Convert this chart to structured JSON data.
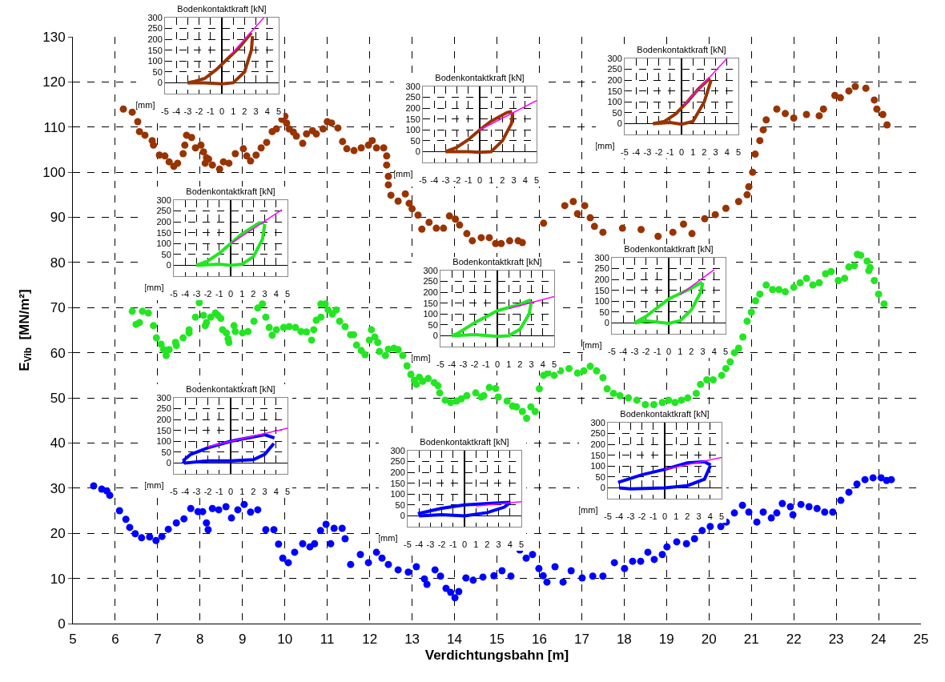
{
  "chart_data": [
    {
      "type": "scatter",
      "xlabel": "Verdichtungsbahn [m]",
      "ylabel": "E$_{Vib}$  [MN/m²]",
      "xlim": [
        5,
        25
      ],
      "xticks": [
        5,
        6,
        7,
        8,
        9,
        10,
        11,
        12,
        13,
        14,
        15,
        16,
        17,
        18,
        19,
        20,
        21,
        22,
        23,
        24,
        25
      ],
      "ylim": [
        0,
        130
      ],
      "yticks": [
        0,
        10,
        20,
        30,
        40,
        50,
        60,
        70,
        80,
        90,
        100,
        110,
        120,
        130
      ],
      "grid": true,
      "marker": "circle",
      "series": [
        {
          "color": "#993300",
          "x": [
            6.19,
            6.4,
            6.53,
            6.57,
            6.7,
            6.87,
            6.9,
            7.04,
            7.17,
            7.27,
            7.38,
            7.47,
            7.6,
            7.64,
            7.68,
            7.8,
            7.89,
            8.02,
            8.08,
            8.12,
            8.15,
            8.2,
            8.29,
            8.46,
            8.55,
            8.68,
            8.83,
            9.02,
            9.1,
            9.19,
            9.32,
            9.44,
            9.57,
            9.7,
            9.8,
            9.93,
            10.0,
            10.04,
            10.1,
            10.2,
            10.27,
            10.42,
            10.51,
            10.65,
            10.74,
            10.9,
            11.0,
            11.1,
            11.25,
            11.36,
            11.46,
            11.63,
            11.8,
            11.97,
            12.06,
            12.16,
            12.33,
            12.4,
            12.4,
            12.44,
            12.44,
            12.5,
            12.67,
            12.84,
            12.93,
            13.0,
            13.14,
            13.23,
            13.4,
            13.57,
            13.74,
            13.88,
            14.02,
            14.12,
            14.29,
            14.42,
            14.63,
            14.82,
            14.97,
            15.1,
            15.3,
            15.5,
            15.6,
            16.1,
            16.6,
            16.8,
            16.9,
            17.07,
            17.2,
            17.3,
            17.5,
            17.96,
            18.4,
            18.8,
            19.15,
            19.4,
            19.6,
            19.9,
            20.15,
            20.4,
            20.7,
            20.9,
            20.94,
            21.03,
            21.09,
            21.2,
            21.28,
            21.35,
            21.6,
            21.8,
            22.0,
            22.3,
            22.6,
            22.7,
            22.97,
            23.1,
            23.3,
            23.45,
            23.7,
            23.9,
            23.96,
            24.1,
            24.2
          ],
          "values": [
            114,
            113.3,
            111.2,
            109,
            108.2,
            107,
            106,
            103.8,
            103.6,
            102.3,
            101.3,
            102,
            104.1,
            106,
            108.2,
            107.7,
            105.4,
            106,
            104.5,
            102,
            103.2,
            102.9,
            101.6,
            100.7,
            102.3,
            102,
            104.1,
            105.2,
            103.6,
            102.5,
            103.8,
            105.4,
            106.6,
            109,
            109.6,
            111.7,
            112.4,
            110.9,
            109.6,
            108.9,
            108,
            106.4,
            108.5,
            109.2,
            108.5,
            109.6,
            111.2,
            110.9,
            109.8,
            106.8,
            105.2,
            104.8,
            105.4,
            106,
            107,
            105.4,
            105.4,
            103.6,
            101.6,
            99.1,
            97.2,
            94.9,
            93.6,
            95.2,
            93.1,
            91.9,
            90.5,
            87.4,
            88.9,
            87.6,
            87.6,
            90.3,
            89.6,
            88.3,
            86.4,
            84.8,
            85.5,
            85.5,
            84.2,
            84.2,
            84.8,
            84.8,
            84.4,
            88.7,
            92.6,
            93.5,
            90.8,
            92.6,
            89.9,
            88,
            86.7,
            87.6,
            87.3,
            85.8,
            86.7,
            88.5,
            86.4,
            89.7,
            90.6,
            92,
            93.5,
            95,
            96.8,
            100,
            104,
            107,
            109.4,
            111.6,
            114,
            113,
            112,
            112.8,
            112.5,
            114,
            117,
            116.5,
            118,
            119,
            118.6,
            116,
            114,
            112.8,
            110.5
          ]
        },
        {
          "color": "#22e622",
          "x": [
            6.4,
            6.49,
            6.57,
            6.64,
            6.78,
            6.9,
            6.97,
            7.08,
            7.14,
            7.2,
            7.27,
            7.42,
            7.44,
            7.6,
            7.74,
            7.74,
            7.89,
            7.98,
            8.08,
            8.12,
            8.15,
            8.25,
            8.36,
            8.42,
            8.49,
            8.53,
            8.62,
            8.66,
            8.68,
            8.8,
            8.83,
            9.0,
            9.13,
            9.27,
            9.36,
            9.47,
            9.55,
            9.63,
            9.7,
            9.8,
            9.97,
            10.1,
            10.25,
            10.38,
            10.51,
            10.63,
            10.68,
            10.74,
            10.85,
            10.85,
            10.95,
            11.02,
            11.12,
            11.21,
            11.29,
            11.42,
            11.55,
            11.62,
            11.69,
            11.8,
            11.89,
            11.99,
            12.04,
            12.12,
            12.19,
            12.23,
            12.37,
            12.44,
            12.57,
            12.67,
            12.78,
            12.88,
            12.97,
            13.05,
            13.1,
            13.17,
            13.25,
            13.38,
            13.52,
            13.61,
            13.65,
            13.78,
            13.91,
            14.05,
            14.16,
            14.29,
            14.5,
            14.63,
            14.69,
            14.82,
            14.97,
            15.03,
            15.24,
            15.37,
            15.46,
            15.6,
            15.7,
            15.8,
            15.9,
            16.0,
            16.1,
            16.2,
            16.35,
            16.5,
            16.7,
            16.9,
            17.05,
            17.2,
            17.35,
            17.5,
            17.6,
            17.75,
            17.9,
            18.1,
            18.3,
            18.5,
            18.7,
            18.9,
            19.05,
            19.2,
            19.35,
            19.5,
            19.7,
            19.8,
            19.95,
            20.1,
            20.3,
            20.4,
            20.5,
            20.6,
            20.7,
            20.8,
            20.9,
            21.0,
            21.1,
            21.2,
            21.35,
            21.5,
            21.65,
            21.8,
            22.0,
            22.15,
            22.3,
            22.45,
            22.6,
            22.75,
            22.88,
            23.05,
            23.2,
            23.3,
            23.43,
            23.5,
            23.58,
            23.73,
            23.77,
            23.8,
            23.9,
            24.0,
            24.13
          ],
          "values": [
            69.2,
            66.3,
            66.7,
            69.2,
            68.8,
            66,
            63.3,
            61.9,
            60.7,
            59.4,
            60.7,
            62.3,
            61.6,
            63.3,
            64.4,
            65.1,
            67.9,
            71.1,
            68.3,
            66,
            66.7,
            67.9,
            68.8,
            68.3,
            67.6,
            65.1,
            64.4,
            63.1,
            62.3,
            66,
            64.7,
            64.4,
            64.7,
            67,
            69.9,
            70.8,
            67.9,
            65.6,
            63.9,
            65.1,
            65.6,
            65.8,
            65.6,
            64.7,
            64.6,
            62.8,
            65.1,
            67.2,
            67.9,
            70.8,
            70.8,
            69.5,
            68.6,
            69.5,
            67,
            65.8,
            64,
            64,
            61.7,
            60.5,
            59.6,
            62.8,
            65.1,
            63.5,
            62.3,
            60.3,
            59.4,
            60.8,
            61,
            60.7,
            59.4,
            57.1,
            55.2,
            53.9,
            53,
            54.6,
            53.7,
            54.3,
            53.4,
            52.7,
            51.1,
            49.5,
            49,
            49.3,
            49.8,
            50.5,
            51.1,
            50.2,
            50.5,
            52.3,
            52.1,
            50.2,
            49.3,
            48.2,
            48,
            47,
            45.5,
            48,
            47,
            52,
            55,
            55.5,
            55,
            56,
            56.5,
            55.5,
            56,
            57,
            56,
            54.5,
            52,
            51,
            50.5,
            50,
            49.5,
            48.5,
            48.5,
            49,
            49.5,
            49,
            49.5,
            50,
            51,
            53,
            54,
            54,
            55,
            56.5,
            58,
            60,
            61,
            63.5,
            67,
            69,
            71.5,
            73,
            75,
            74,
            74,
            73.5,
            74.5,
            75.5,
            76.5,
            75,
            75.5,
            77.5,
            78,
            76,
            76.5,
            79,
            79.3,
            81.8,
            81.6,
            80.3,
            78.2,
            78.9,
            76,
            73,
            70.8
          ]
        },
        {
          "color": "#0000ff",
          "x": [
            5.49,
            5.68,
            5.8,
            5.87,
            6.1,
            6.25,
            6.34,
            6.47,
            6.62,
            6.81,
            6.96,
            7.1,
            7.25,
            7.44,
            7.62,
            7.78,
            7.95,
            8.06,
            8.15,
            8.19,
            8.29,
            8.44,
            8.61,
            8.74,
            8.89,
            9.04,
            9.19,
            9.36,
            9.55,
            9.74,
            9.85,
            9.95,
            10.08,
            10.23,
            10.42,
            10.59,
            10.7,
            10.84,
            10.97,
            11.08,
            11.16,
            11.35,
            11.42,
            11.55,
            11.78,
            11.97,
            12.16,
            12.29,
            12.44,
            12.67,
            12.91,
            13.1,
            13.29,
            13.35,
            13.54,
            13.67,
            13.8,
            13.91,
            14.01,
            14.1,
            14.27,
            14.44,
            14.67,
            14.93,
            15.12,
            15.33,
            15.54,
            15.69,
            15.84,
            15.99,
            16.09,
            16.18,
            16.37,
            16.56,
            16.75,
            17.01,
            17.26,
            17.5,
            17.77,
            18.01,
            18.2,
            18.39,
            18.56,
            18.71,
            18.9,
            19.01,
            19.24,
            19.47,
            19.66,
            19.84,
            20.03,
            20.28,
            20.41,
            20.6,
            20.79,
            20.94,
            21.13,
            21.28,
            21.47,
            21.6,
            21.73,
            21.92,
            21.98,
            22.17,
            22.36,
            22.55,
            22.73,
            22.92,
            23.11,
            23.3,
            23.49,
            23.68,
            23.87,
            24.06,
            24.19,
            24.3
          ],
          "values": [
            30.5,
            29.8,
            29.4,
            28.4,
            25,
            23.1,
            21.3,
            19.9,
            19,
            19.2,
            18.4,
            19.3,
            20.9,
            22.3,
            23.2,
            25.5,
            24.8,
            24.8,
            22.3,
            20.8,
            25.5,
            25.2,
            25.9,
            23.4,
            25.2,
            26.4,
            24.7,
            25.2,
            20.8,
            20.8,
            17.6,
            14.5,
            13.5,
            15.8,
            17.7,
            17,
            17.7,
            20.6,
            22,
            17.7,
            21.1,
            21.1,
            18.8,
            13.1,
            15.3,
            13.5,
            15.8,
            14.5,
            13.1,
            11.9,
            11.4,
            12.6,
            9.9,
            8.7,
            11.9,
            10.5,
            7.8,
            6.9,
            5.7,
            7.1,
            10.1,
            9.6,
            10.3,
            10.6,
            11.7,
            10.5,
            16.3,
            14.5,
            15.3,
            12.2,
            10.6,
            9.2,
            12.6,
            9.2,
            11.7,
            10.1,
            10.5,
            10.5,
            13.5,
            12.2,
            13.8,
            13.8,
            15.8,
            14.2,
            15.3,
            17,
            18.1,
            17.7,
            18.8,
            20.6,
            21.5,
            21.5,
            22.5,
            24.5,
            26.2,
            24.7,
            22.5,
            24.7,
            23.4,
            24.5,
            26.6,
            25.9,
            24.1,
            26.4,
            25.9,
            25.5,
            24.7,
            24.7,
            27.3,
            29.1,
            30.9,
            31.9,
            32.3,
            32.3,
            31.7,
            31.9
          ]
        }
      ]
    },
    {
      "type": "line",
      "title": "Bodenkontaktkraft [kN]",
      "xlabel": "[mm]",
      "xlim": [
        -5,
        5
      ],
      "xticks": [
        -5,
        -4,
        -3,
        -2,
        -1,
        0,
        1,
        2,
        3,
        4,
        5
      ],
      "ylim": [
        -50,
        300
      ],
      "yticks": [
        0,
        50,
        100,
        150,
        200,
        250,
        300
      ],
      "grid": true,
      "series": [
        {
          "color": "#993300",
          "x": [
            -3,
            -1.5,
            0,
            1,
            2,
            2.6,
            2.7
          ],
          "values": [
            0,
            0,
            -5,
            0,
            50,
            150,
            215
          ]
        },
        {
          "color": "#993300",
          "x": [
            -3,
            -2.5,
            -1.5,
            -0.5,
            0.5,
            1.5,
            2.6
          ],
          "values": [
            0,
            5,
            20,
            60,
            110,
            160,
            230
          ]
        },
        {
          "color": "#ff00ff",
          "x": [
            0.8,
            3.7
          ],
          "values": [
            130,
            300
          ]
        }
      ]
    },
    {
      "type": "line",
      "title": "Bodenkontaktkraft [kN]",
      "xlabel": "[mm]",
      "xlim": [
        -5,
        5
      ],
      "xticks": [
        -5,
        -4,
        -3,
        -2,
        -1,
        0,
        1,
        2,
        3,
        4,
        5
      ],
      "ylim": [
        -50,
        300
      ],
      "yticks": [
        0,
        50,
        100,
        150,
        200,
        250,
        300
      ],
      "grid": true,
      "series": [
        {
          "color": "#993300",
          "x": [
            -3,
            -1,
            0,
            1,
            2,
            2.8,
            2.9
          ],
          "values": [
            0,
            0,
            -3,
            0,
            50,
            130,
            180
          ]
        },
        {
          "color": "#993300",
          "x": [
            -3,
            -2,
            -1,
            0,
            1,
            2.4,
            2.85
          ],
          "values": [
            0,
            20,
            55,
            100,
            140,
            180,
            185
          ]
        },
        {
          "color": "#ff00ff",
          "x": [
            0,
            5
          ],
          "values": [
            100,
            235
          ]
        }
      ]
    },
    {
      "type": "line",
      "title": "Bodenkontaktkraft [kN]",
      "xlabel": "[mm]",
      "xlim": [
        -5,
        5
      ],
      "xticks": [
        -5,
        -4,
        -3,
        -2,
        -1,
        0,
        1,
        2,
        3,
        4,
        5
      ],
      "ylim": [
        -50,
        300
      ],
      "yticks": [
        0,
        50,
        100,
        150,
        200,
        250,
        300
      ],
      "grid": true,
      "series": [
        {
          "color": "#993300",
          "x": [
            -2.5,
            -1,
            0,
            1,
            2,
            2.6
          ],
          "values": [
            0,
            5,
            -3,
            10,
            100,
            200
          ]
        },
        {
          "color": "#993300",
          "x": [
            -2.5,
            -1.5,
            -0.5,
            0.5,
            1.5,
            2.5
          ],
          "values": [
            0,
            10,
            45,
            100,
            160,
            210
          ]
        },
        {
          "color": "#ff00ff",
          "x": [
            0.2,
            4
          ],
          "values": [
            85,
            300
          ]
        }
      ]
    },
    {
      "type": "line",
      "title": "Bodenkontaktkraft [kN]",
      "xlabel": "[mm]",
      "xlim": [
        -5,
        5
      ],
      "xticks": [
        -5,
        -4,
        -3,
        -2,
        -1,
        0,
        1,
        2,
        3,
        4,
        5
      ],
      "ylim": [
        -50,
        300
      ],
      "yticks": [
        0,
        50,
        100,
        150,
        200,
        250,
        300
      ],
      "grid": true,
      "series": [
        {
          "color": "#22e622",
          "x": [
            -3,
            -1,
            0,
            1,
            2,
            2.8,
            3
          ],
          "values": [
            0,
            5,
            0,
            5,
            40,
            120,
            190
          ]
        },
        {
          "color": "#22e622",
          "x": [
            -3,
            -2,
            -1,
            0,
            1,
            2.5,
            2.95
          ],
          "values": [
            0,
            20,
            55,
            100,
            145,
            195,
            195
          ]
        },
        {
          "color": "#ff00ff",
          "x": [
            0,
            4.5
          ],
          "values": [
            100,
            255
          ]
        }
      ]
    },
    {
      "type": "line",
      "title": "Bodenkontaktkraft [kN]",
      "xlabel": "[mm]",
      "xlim": [
        -5,
        5
      ],
      "xticks": [
        -5,
        -4,
        -3,
        -2,
        -1,
        0,
        1,
        2,
        3,
        4,
        5
      ],
      "ylim": [
        -50,
        300
      ],
      "yticks": [
        0,
        50,
        100,
        150,
        200,
        250,
        300
      ],
      "grid": true,
      "series": [
        {
          "color": "#22e622",
          "x": [
            -4,
            -2,
            0,
            1,
            2,
            2.8,
            3
          ],
          "values": [
            0,
            5,
            -3,
            0,
            30,
            100,
            160
          ]
        },
        {
          "color": "#22e622",
          "x": [
            -4,
            -3.5,
            -2,
            0,
            2,
            2.95
          ],
          "values": [
            0,
            10,
            60,
            115,
            145,
            165
          ]
        },
        {
          "color": "#ff00ff",
          "x": [
            1,
            5
          ],
          "values": [
            125,
            180
          ]
        }
      ]
    },
    {
      "type": "line",
      "title": "Bodenkontaktkraft [kN]",
      "xlabel": "[mm]",
      "xlim": [
        -5,
        5
      ],
      "xticks": [
        -5,
        -4,
        -3,
        -2,
        -1,
        0,
        1,
        2,
        3,
        4,
        5
      ],
      "ylim": [
        -50,
        300
      ],
      "yticks": [
        0,
        50,
        100,
        150,
        200,
        250,
        300
      ],
      "grid": true,
      "series": [
        {
          "color": "#22e622",
          "x": [
            -3,
            -2,
            0,
            1,
            2,
            2.8,
            3
          ],
          "values": [
            0,
            10,
            -2,
            10,
            60,
            140,
            185
          ]
        },
        {
          "color": "#22e622",
          "x": [
            -3,
            -2,
            -1,
            0,
            2,
            2.95
          ],
          "values": [
            0,
            30,
            70,
            110,
            160,
            188
          ]
        },
        {
          "color": "#ff00ff",
          "x": [
            1,
            4
          ],
          "values": [
            130,
            245
          ]
        }
      ]
    },
    {
      "type": "line",
      "title": "Bodenkontaktkraft [kN]",
      "xlabel": "[mm]",
      "xlim": [
        -5,
        5
      ],
      "xticks": [
        -5,
        -4,
        -3,
        -2,
        -1,
        0,
        1,
        2,
        3,
        4,
        5
      ],
      "ylim": [
        -50,
        300
      ],
      "yticks": [
        0,
        50,
        100,
        150,
        200,
        250,
        300
      ],
      "grid": true,
      "series": [
        {
          "color": "#0000ff",
          "x": [
            -4.2,
            -4,
            -2,
            0,
            2,
            3,
            3.8
          ],
          "values": [
            10,
            0,
            10,
            10,
            15,
            40,
            90
          ]
        },
        {
          "color": "#0000ff",
          "x": [
            -4.2,
            -3.5,
            -2,
            0,
            3,
            3.85
          ],
          "values": [
            10,
            40,
            70,
            100,
            130,
            115
          ]
        },
        {
          "color": "#ff00ff",
          "x": [
            -2,
            5
          ],
          "values": [
            75,
            160
          ]
        }
      ]
    },
    {
      "type": "line",
      "title": "Bodenkontaktkraft [kN]",
      "xlabel": "[mm]",
      "xlim": [
        -5,
        5
      ],
      "xticks": [
        -5,
        -4,
        -3,
        -2,
        -1,
        0,
        1,
        2,
        3,
        4,
        5
      ],
      "ylim": [
        -50,
        300
      ],
      "yticks": [
        0,
        50,
        100,
        150,
        200,
        250,
        300
      ],
      "grid": true,
      "series": [
        {
          "color": "#0000ff",
          "x": [
            -4,
            -2,
            0,
            2,
            3.5,
            4
          ],
          "values": [
            0,
            5,
            0,
            15,
            40,
            60
          ]
        },
        {
          "color": "#0000ff",
          "x": [
            -4.1,
            -2,
            0,
            3,
            4.05
          ],
          "values": [
            10,
            35,
            50,
            60,
            62
          ]
        },
        {
          "color": "#ff00ff",
          "x": [
            1,
            5
          ],
          "values": [
            45,
            65
          ]
        }
      ]
    },
    {
      "type": "line",
      "title": "Bodenkontaktkraft [kN]",
      "xlabel": "[mm]",
      "xlim": [
        -5,
        5
      ],
      "xticks": [
        -5,
        -4,
        -3,
        -2,
        -1,
        0,
        1,
        2,
        3,
        4,
        5
      ],
      "ylim": [
        -50,
        300
      ],
      "yticks": [
        0,
        50,
        100,
        150,
        200,
        250,
        300
      ],
      "grid": true,
      "series": [
        {
          "color": "#0000ff",
          "x": [
            -4,
            -3,
            0,
            2,
            3.5,
            4
          ],
          "values": [
            0,
            -5,
            0,
            10,
            40,
            100
          ]
        },
        {
          "color": "#0000ff",
          "x": [
            -4.1,
            -2,
            0,
            2,
            3.5,
            4.05
          ],
          "values": [
            25,
            60,
            85,
            115,
            120,
            105
          ]
        },
        {
          "color": "#ff00ff",
          "x": [
            0,
            5
          ],
          "values": [
            85,
            140
          ]
        }
      ]
    }
  ]
}
